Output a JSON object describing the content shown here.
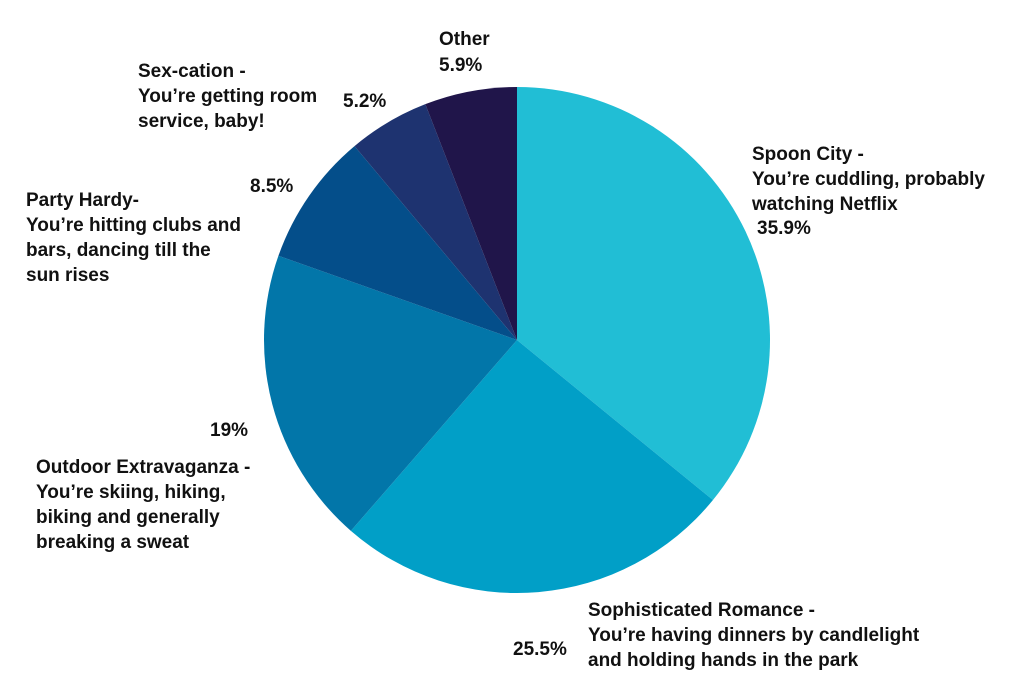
{
  "chart_data": {
    "type": "pie",
    "title": "",
    "start_angle": "top, clockwise",
    "slices": [
      {
        "label": "Spoon City -\nYou’re cuddling, probably\nwatching Netflix",
        "value": 35.9,
        "value_label": "35.9%",
        "color": "#21bed5"
      },
      {
        "label": "Sophisticated Romance -\nYou’re having dinners by candlelight\nand holding hands in the park",
        "value": 25.5,
        "value_label": "25.5%",
        "color": "#019fc7"
      },
      {
        "label": "Outdoor Extravaganza -\nYou’re skiing, hiking,\nbiking and generally\nbreaking a sweat",
        "value": 19,
        "value_label": "19%",
        "color": "#0276a9"
      },
      {
        "label": "Party Hardy-\nYou’re hitting clubs and\nbars, dancing till the\nsun rises",
        "value": 8.5,
        "value_label": "8.5%",
        "color": "#044e8a"
      },
      {
        "label": "Sex-cation -\nYou’re getting room\nservice, baby!",
        "value": 5.2,
        "value_label": "5.2%",
        "color": "#1e3370"
      },
      {
        "label": "Other",
        "value": 5.9,
        "value_label": "5.9%",
        "color": "#20154a"
      }
    ]
  }
}
